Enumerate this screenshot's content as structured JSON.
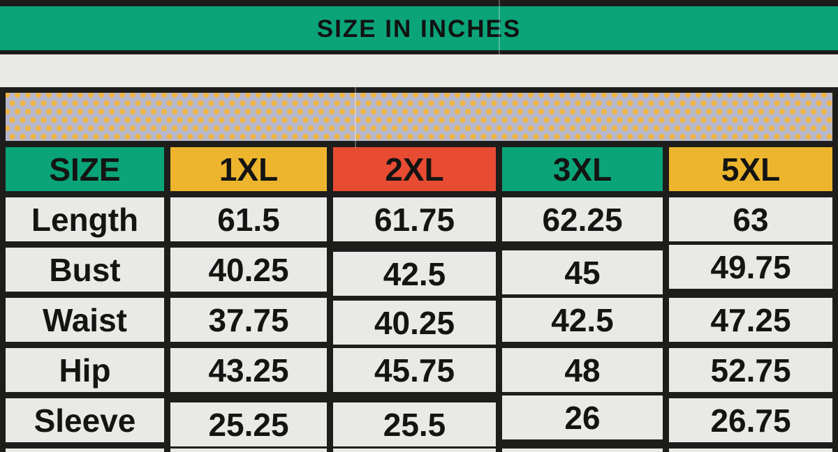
{
  "banner": {
    "title": "SIZE IN INCHES"
  },
  "table": {
    "header": [
      "SIZE",
      "1XL",
      "2XL",
      "3XL",
      "5XL"
    ],
    "rows": [
      {
        "label": "Length",
        "values": [
          "61.5",
          "61.75",
          "62.25",
          "63"
        ]
      },
      {
        "label": "Bust",
        "values": [
          "40.25",
          "42.5",
          "45",
          "49.75"
        ]
      },
      {
        "label": "Waist",
        "values": [
          "37.75",
          "40.25",
          "42.5",
          "47.25"
        ]
      },
      {
        "label": "Hip",
        "values": [
          "43.25",
          "45.75",
          "48",
          "52.75"
        ]
      },
      {
        "label": "Sleeve",
        "values": [
          "25.25",
          "25.5",
          "26",
          "26.75"
        ]
      }
    ]
  },
  "chart_data": {
    "type": "table",
    "title": "SIZE IN INCHES",
    "columns": [
      "SIZE",
      "1XL",
      "2XL",
      "3XL",
      "5XL"
    ],
    "rows": [
      [
        "Length",
        61.5,
        61.75,
        62.25,
        63
      ],
      [
        "Bust",
        40.25,
        42.5,
        45,
        49.75
      ],
      [
        "Waist",
        37.75,
        40.25,
        42.5,
        47.25
      ],
      [
        "Hip",
        43.25,
        45.75,
        48,
        52.75
      ],
      [
        "Sleeve",
        25.25,
        25.5,
        26,
        26.75
      ]
    ]
  },
  "colors": {
    "green": "#0aa478",
    "yellow": "#ecb52d",
    "red": "#e74c33",
    "border_black": "#1d1d1c",
    "cell_gray": "#e9e9e7",
    "dot_band_bg": "#b7b8cb",
    "dot": "#efb441",
    "text": "#141413"
  }
}
